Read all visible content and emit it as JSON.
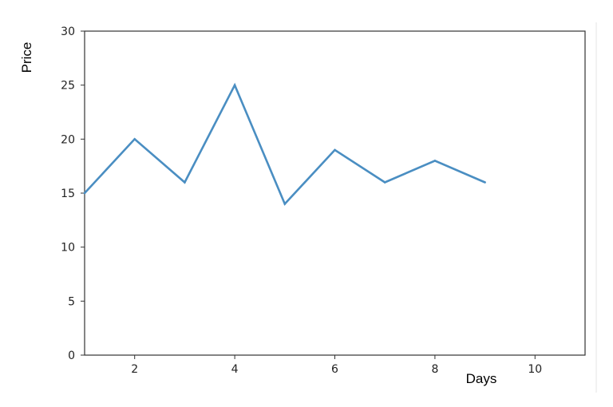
{
  "chart_data": {
    "type": "line",
    "title": "",
    "xlabel": "Days",
    "ylabel": "Price",
    "xlim": [
      1,
      11
    ],
    "ylim": [
      0,
      30
    ],
    "x_ticks": [
      2,
      4,
      6,
      8,
      10
    ],
    "y_ticks": [
      0,
      5,
      10,
      15,
      20,
      25,
      30
    ],
    "grid": false,
    "series": [
      {
        "color": "#4a8ec2",
        "x": [
          1,
          2,
          3,
          4,
          5,
          6,
          7,
          8,
          9
        ],
        "y": [
          15,
          20,
          16,
          25,
          14,
          19,
          16,
          18,
          16
        ]
      }
    ]
  }
}
